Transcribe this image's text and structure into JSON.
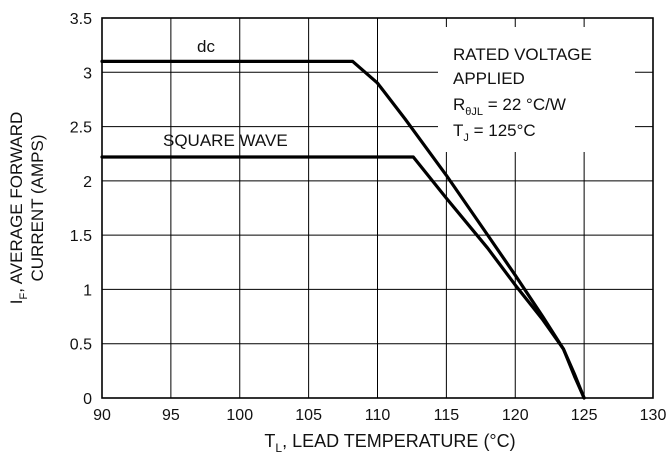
{
  "chart_data": {
    "type": "line",
    "xlabel_main": "T",
    "xlabel_sub": "L",
    "xlabel_rest": ", LEAD TEMPERATURE (°C)",
    "ylabel_line1_main": "I",
    "ylabel_line1_sub": "F",
    "ylabel_line1_rest": ", AVERAGE FORWARD",
    "ylabel_line2": "CURRENT (AMPS)",
    "xlim": [
      90,
      130
    ],
    "ylim": [
      0,
      3.5
    ],
    "x_ticks": [
      "90",
      "95",
      "100",
      "105",
      "110",
      "115",
      "120",
      "125",
      "130"
    ],
    "y_ticks": [
      "0",
      "0.5",
      "1",
      "1.5",
      "2",
      "2.5",
      "3",
      "3.5"
    ],
    "grid": true,
    "series": [
      {
        "name": "dc",
        "points": [
          [
            90,
            3.1
          ],
          [
            108.2,
            3.1
          ],
          [
            110,
            2.9
          ],
          [
            112,
            2.57
          ],
          [
            115,
            2.05
          ],
          [
            118,
            1.5
          ],
          [
            120,
            1.13
          ],
          [
            122,
            0.75
          ],
          [
            123.5,
            0.45
          ],
          [
            124.3,
            0.2
          ],
          [
            125,
            0
          ]
        ]
      },
      {
        "name": "SQUARE WAVE",
        "points": [
          [
            90,
            2.22
          ],
          [
            112.6,
            2.22
          ],
          [
            115,
            1.84
          ],
          [
            118,
            1.38
          ],
          [
            120,
            1.04
          ],
          [
            122,
            0.72
          ],
          [
            123.5,
            0.45
          ],
          [
            124.3,
            0.22
          ],
          [
            125,
            0
          ]
        ]
      }
    ],
    "annotation": {
      "line1": "RATED VOLTAGE",
      "line2": "APPLIED",
      "line3_main": "R",
      "line3_sub": "θJL",
      "line3_rest": " = 22 °C/W",
      "line4_main": "T",
      "line4_sub": "J",
      "line4_rest": " = 125°C"
    }
  }
}
